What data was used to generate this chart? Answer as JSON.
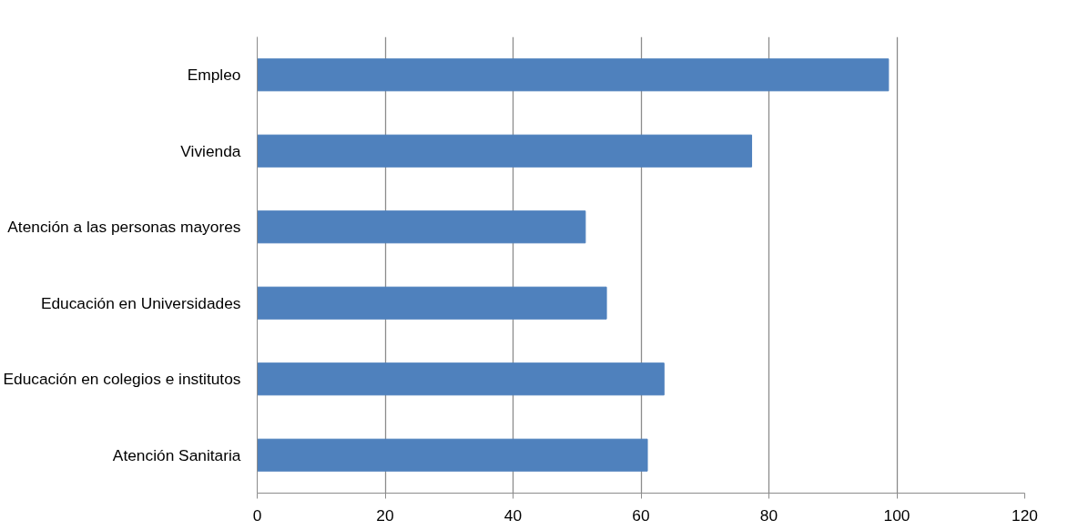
{
  "chart_data": {
    "type": "bar",
    "orientation": "horizontal",
    "categories": [
      "Empleo",
      "Vivienda",
      "Atención a las personas mayores",
      "Educación en Universidades",
      "Educación en colegios e institutos",
      "Atención Sanitaria"
    ],
    "values": [
      98.7,
      77.3,
      51.3,
      54.6,
      63.6,
      61.0
    ],
    "color": "#4f81bd",
    "xlim": [
      0,
      120
    ],
    "xticks": [
      0,
      20,
      40,
      60,
      80,
      100,
      120
    ],
    "grid": "x"
  }
}
